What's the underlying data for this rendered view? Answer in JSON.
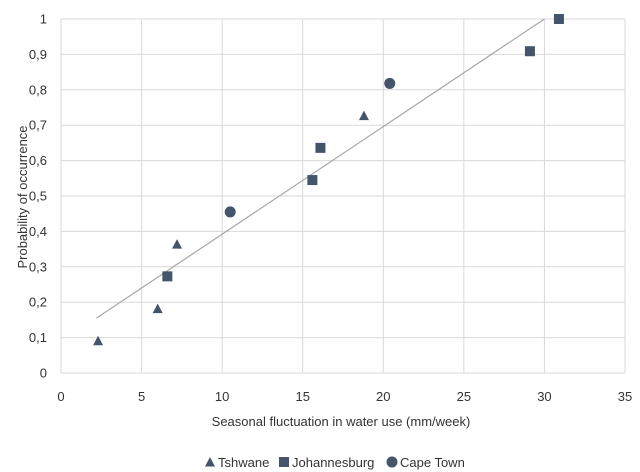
{
  "chart_data": {
    "type": "scatter",
    "title": "",
    "xlabel": "Seasonal fluctuation in water use (mm/week)",
    "ylabel": "Probability of occurrence",
    "xlim": [
      0,
      35
    ],
    "ylim": [
      0,
      1
    ],
    "xticks": [
      0,
      5,
      10,
      15,
      20,
      25,
      30,
      35
    ],
    "yticks": [
      "0",
      "0,1",
      "0,2",
      "0,3",
      "0,4",
      "0,5",
      "0,6",
      "0,7",
      "0,8",
      "0,9",
      "1"
    ],
    "grid": "vertical and horizontal",
    "legend_position": "bottom",
    "marker_color": "#44546a",
    "series": [
      {
        "name": "Tshwane",
        "marker": "triangle",
        "points": [
          [
            2.3,
            0.091
          ],
          [
            6.0,
            0.182
          ],
          [
            7.2,
            0.364
          ],
          [
            18.8,
            0.727
          ]
        ]
      },
      {
        "name": "Johannesburg",
        "marker": "square",
        "points": [
          [
            6.6,
            0.273
          ],
          [
            15.6,
            0.545
          ],
          [
            16.1,
            0.636
          ],
          [
            29.1,
            0.909
          ],
          [
            30.9,
            1.0
          ]
        ]
      },
      {
        "name": "Cape Town",
        "marker": "circle",
        "points": [
          [
            10.5,
            0.455
          ],
          [
            20.4,
            0.818
          ]
        ]
      }
    ],
    "trendline": {
      "color": "#a6a6a6",
      "x_range": [
        2.2,
        30.0
      ],
      "y_range": [
        0.155,
        1.0
      ]
    }
  }
}
